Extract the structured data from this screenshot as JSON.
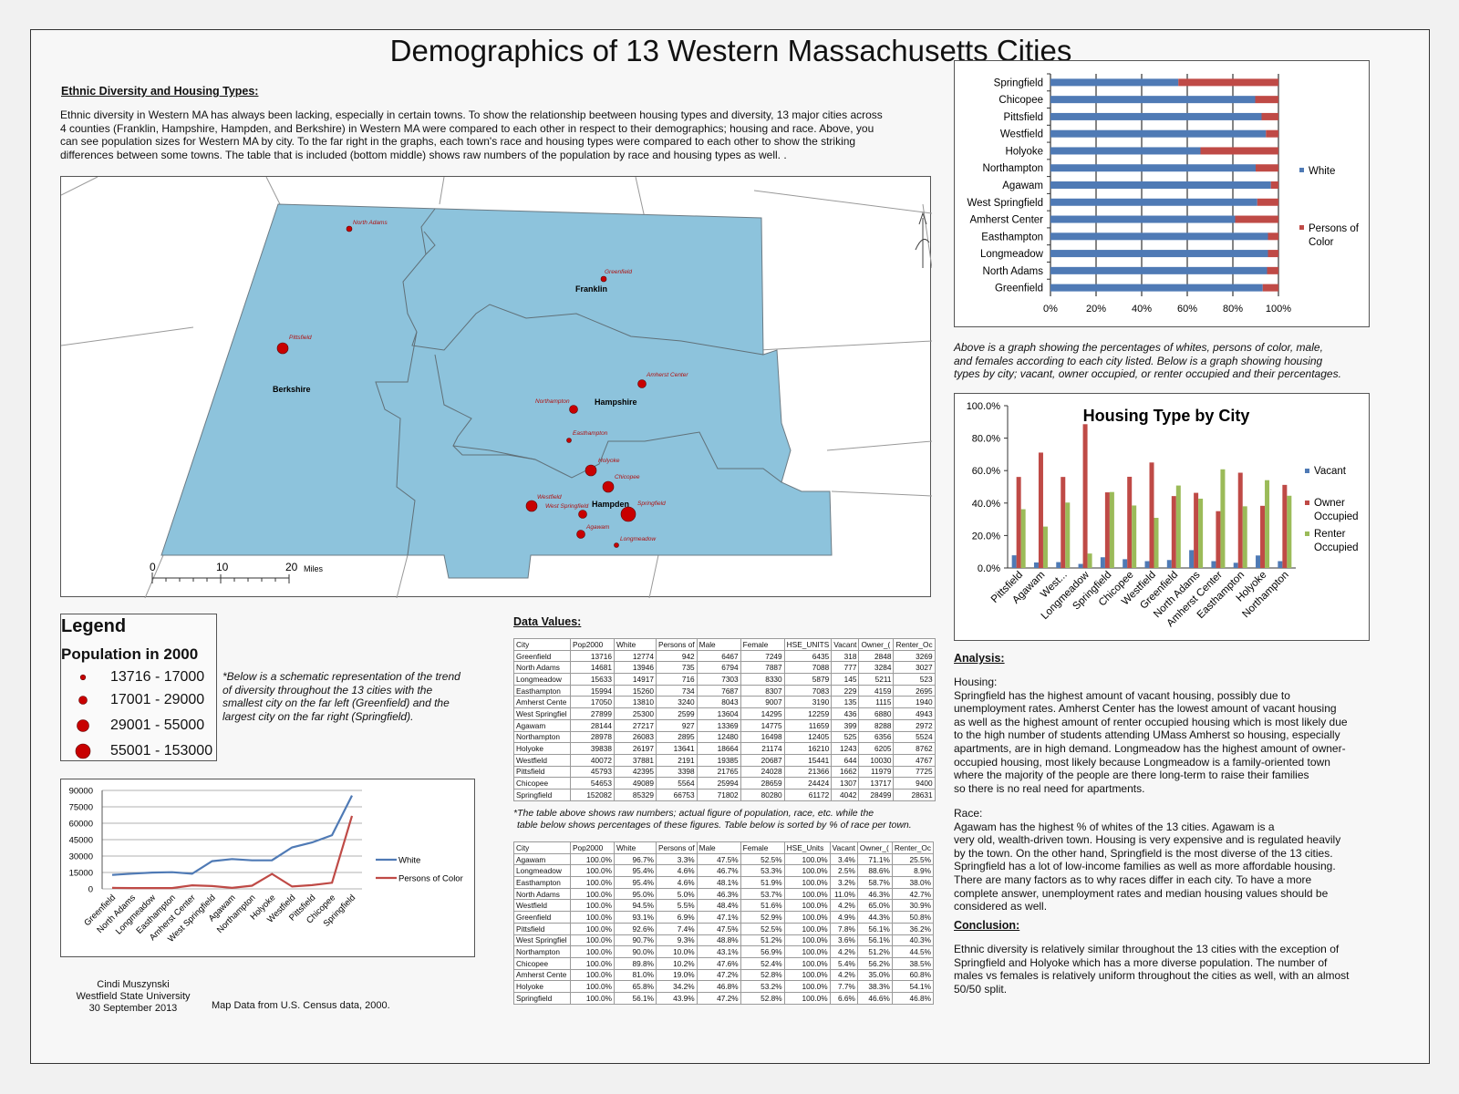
{
  "title": "Demographics of 13 Western Massachusetts Cities",
  "intro": {
    "heading": "Ethnic Diversity and Housing Types:",
    "lines": [
      "Ethnic diversity in Western MA has always been lacking, especially in certain towns. To show the relationship beetween housing types and diversity, 13 major cities across",
      "4 counties (Franklin, Hampshire, Hampden, and Berkshire) in Western MA were compared to each other in respect  to their demographics; housing and race. Above, you",
      "can see population sizes for Western MA by city. To the far right in the graphs, each town's race and housing types were compared to each other to show the striking",
      "differences between some towns. The table that is included  (bottom middle) shows raw numbers of the population by race and housing types as well. ."
    ]
  },
  "map": {
    "counties": [
      "Franklin",
      "Berkshire",
      "Hampshire",
      "Hampden"
    ],
    "cities": [
      "North Adams",
      "Greenfield",
      "Pittsfield",
      "Amherst Center",
      "Northampton",
      "Easthampton",
      "Holyoke",
      "Chicopee",
      "Westfield",
      "West Springfield",
      "Springfield",
      "Agawam",
      "Longmeadow"
    ],
    "scale": {
      "ticks": [
        "0",
        "10",
        "20"
      ],
      "unit": "Miles"
    },
    "colors": {
      "land": "#8dc3dc",
      "city": "#c80000",
      "label": "#b01010"
    }
  },
  "legend": {
    "title": "Legend",
    "subtitle": "Population in 2000",
    "classes": [
      "13716 - 17000",
      "17001 - 29000",
      "29001 - 55000",
      "55001 - 153000"
    ]
  },
  "schematic_note": [
    "*Below is a schematic representation of the trend",
    "of diversity throughout the 13 cities with the",
    "smallest city on the far left (Greenfield) and the",
    "largest city on the far right (Springfield)."
  ],
  "credits": {
    "author": "Cindi Muszynski",
    "school": "Westfield State University",
    "date": "30 September 2013",
    "source": "Map Data from U.S. Census data, 2000."
  },
  "data_values": {
    "heading": "Data Values:",
    "table1": {
      "headers": [
        "City",
        "Pop2000",
        "White",
        "Persons of",
        "Male",
        "Female",
        "HSE_UNITS",
        "Vacant",
        "Owner_(",
        "Renter_Oc"
      ],
      "rows": [
        [
          "Greenfield",
          "13716",
          "12774",
          "942",
          "6467",
          "7249",
          "6435",
          "318",
          "2848",
          "3269"
        ],
        [
          "North Adams",
          "14681",
          "13946",
          "735",
          "6794",
          "7887",
          "7088",
          "777",
          "3284",
          "3027"
        ],
        [
          "Longmeadow",
          "15633",
          "14917",
          "716",
          "7303",
          "8330",
          "5879",
          "145",
          "5211",
          "523"
        ],
        [
          "Easthampton",
          "15994",
          "15260",
          "734",
          "7687",
          "8307",
          "7083",
          "229",
          "4159",
          "2695"
        ],
        [
          "Amherst Cente",
          "17050",
          "13810",
          "3240",
          "8043",
          "9007",
          "3190",
          "135",
          "1115",
          "1940"
        ],
        [
          "West Springfiel",
          "27899",
          "25300",
          "2599",
          "13604",
          "14295",
          "12259",
          "436",
          "6880",
          "4943"
        ],
        [
          "Agawam",
          "28144",
          "27217",
          "927",
          "13369",
          "14775",
          "11659",
          "399",
          "8288",
          "2972"
        ],
        [
          "Northampton",
          "28978",
          "26083",
          "2895",
          "12480",
          "16498",
          "12405",
          "525",
          "6356",
          "5524"
        ],
        [
          "Holyoke",
          "39838",
          "26197",
          "13641",
          "18664",
          "21174",
          "16210",
          "1243",
          "6205",
          "8762"
        ],
        [
          "Westfield",
          "40072",
          "37881",
          "2191",
          "19385",
          "20687",
          "15441",
          "644",
          "10030",
          "4767"
        ],
        [
          "Pittsfield",
          "45793",
          "42395",
          "3398",
          "21765",
          "24028",
          "21366",
          "1662",
          "11979",
          "7725"
        ],
        [
          "Chicopee",
          "54653",
          "49089",
          "5564",
          "25994",
          "28659",
          "24424",
          "1307",
          "13717",
          "9400"
        ],
        [
          "Springfield",
          "152082",
          "85329",
          "66753",
          "71802",
          "80280",
          "61172",
          "4042",
          "28499",
          "28631"
        ]
      ]
    },
    "note": [
      "*The table above shows raw numbers; actual figure of population, race, etc. while the",
      "table below shows percentages of these figures. Table below is sorted by % of race per town."
    ],
    "table2": {
      "headers": [
        "City",
        "Pop2000",
        "White",
        "Persons of",
        "Male",
        "Female",
        "HSE_Units",
        "Vacant",
        "Owner_(",
        "Renter_Oc"
      ],
      "rows": [
        [
          "Agawam",
          "100.0%",
          "96.7%",
          "3.3%",
          "47.5%",
          "52.5%",
          "100.0%",
          "3.4%",
          "71.1%",
          "25.5%"
        ],
        [
          "Longmeadow",
          "100.0%",
          "95.4%",
          "4.6%",
          "46.7%",
          "53.3%",
          "100.0%",
          "2.5%",
          "88.6%",
          "8.9%"
        ],
        [
          "Easthampton",
          "100.0%",
          "95.4%",
          "4.6%",
          "48.1%",
          "51.9%",
          "100.0%",
          "3.2%",
          "58.7%",
          "38.0%"
        ],
        [
          "North Adams",
          "100.0%",
          "95.0%",
          "5.0%",
          "46.3%",
          "53.7%",
          "100.0%",
          "11.0%",
          "46.3%",
          "42.7%"
        ],
        [
          "Westfield",
          "100.0%",
          "94.5%",
          "5.5%",
          "48.4%",
          "51.6%",
          "100.0%",
          "4.2%",
          "65.0%",
          "30.9%"
        ],
        [
          "Greenfield",
          "100.0%",
          "93.1%",
          "6.9%",
          "47.1%",
          "52.9%",
          "100.0%",
          "4.9%",
          "44.3%",
          "50.8%"
        ],
        [
          "Pittsfield",
          "100.0%",
          "92.6%",
          "7.4%",
          "47.5%",
          "52.5%",
          "100.0%",
          "7.8%",
          "56.1%",
          "36.2%"
        ],
        [
          "West Springfiel",
          "100.0%",
          "90.7%",
          "9.3%",
          "48.8%",
          "51.2%",
          "100.0%",
          "3.6%",
          "56.1%",
          "40.3%"
        ],
        [
          "Northampton",
          "100.0%",
          "90.0%",
          "10.0%",
          "43.1%",
          "56.9%",
          "100.0%",
          "4.2%",
          "51.2%",
          "44.5%"
        ],
        [
          "Chicopee",
          "100.0%",
          "89.8%",
          "10.2%",
          "47.6%",
          "52.4%",
          "100.0%",
          "5.4%",
          "56.2%",
          "38.5%"
        ],
        [
          "Amherst Cente",
          "100.0%",
          "81.0%",
          "19.0%",
          "47.2%",
          "52.8%",
          "100.0%",
          "4.2%",
          "35.0%",
          "60.8%"
        ],
        [
          "Holyoke",
          "100.0%",
          "65.8%",
          "34.2%",
          "46.8%",
          "53.2%",
          "100.0%",
          "7.7%",
          "38.3%",
          "54.1%"
        ],
        [
          "Springfield",
          "100.0%",
          "56.1%",
          "43.9%",
          "47.2%",
          "52.8%",
          "100.0%",
          "6.6%",
          "46.6%",
          "46.8%"
        ]
      ]
    }
  },
  "graph_note": [
    "Above is a graph showing the percentages of whites, persons of color, male,",
    "and females according to each city listed. Below is a graph showing housing",
    "types by city; vacant, owner occupied, or renter occupied and their percentages."
  ],
  "analysis": {
    "heading": "Analysis:",
    "housing_label": "Housing:",
    "housing_lines": [
      "Springfield has the highest amount of vacant housing, possibly due to",
      "unemployment rates. Amherst Center has the lowest amount of vacant housing",
      "as well as the highest amount of renter occupied housing which is most likely due",
      "to the high number of students attending UMass Amherst so housing, especially",
      "apartments, are in high demand. Longmeadow has the highest amount of owner-",
      "occupied housing, most likely because Longmeadow is a family-oriented town",
      "where the majority of the people are there long-term to raise their families",
      "so there is no real need for apartments."
    ],
    "race_label": "Race:",
    "race_lines": [
      "Agawam has the highest % of whites of the 13 cities. Agawam is a",
      "very old, wealth-driven town. Housing is very expensive and is regulated heavily",
      "by the town. On the other hand, Springfield is the most diverse of the 13 cities.",
      "Springfield has a lot of low-income families as well as more affordable housing.",
      "There are many factors as to why races differ in each city. To have a more",
      "complete answer, unemployment rates and median housing values should be",
      "considered as well."
    ]
  },
  "conclusion": {
    "heading": "Conclusion:",
    "lines": [
      "Ethnic diversity is relatively similar throughout the 13 cities with the exception of",
      "Springfield and Holyoke which has a more diverse population. The number of",
      "males vs females is relatively uniform throughout the cities as well, with an almost",
      "50/50 split."
    ]
  },
  "chart_data": [
    {
      "type": "bar",
      "orientation": "horizontal",
      "stacked": "percent",
      "categories": [
        "Springfield",
        "Chicopee",
        "Pittsfield",
        "Westfield",
        "Holyoke",
        "Northampton",
        "Agawam",
        "West Springfield",
        "Amherst Center",
        "Easthampton",
        "Longmeadow",
        "North Adams",
        "Greenfield"
      ],
      "series": [
        {
          "name": "White",
          "color": "#4f7ab5",
          "values": [
            56.1,
            89.8,
            92.6,
            94.5,
            65.8,
            90.0,
            96.7,
            90.7,
            81.0,
            95.4,
            95.4,
            95.0,
            93.1
          ]
        },
        {
          "name": "Persons of Color",
          "color": "#bf4a46",
          "values": [
            43.9,
            10.2,
            7.4,
            5.5,
            34.2,
            10.0,
            3.3,
            9.3,
            19.0,
            4.6,
            4.6,
            5.0,
            6.9
          ]
        }
      ],
      "xticks": [
        "0%",
        "20%",
        "40%",
        "60%",
        "80%",
        "100%"
      ],
      "xlim": [
        0,
        100
      ],
      "legend": [
        "White",
        "Persons of Color"
      ],
      "legend_labels": {
        "white": "White",
        "poc_line1": "Persons of",
        "poc_line2": "Color"
      },
      "legend_position": "right",
      "grid": true
    },
    {
      "type": "bar",
      "title": "Housing Type by City",
      "categories": [
        "Pittsfield",
        "Agawam",
        "West...",
        "Longmeadow",
        "Springfield",
        "Chicopee",
        "Westfield",
        "Greenfield",
        "North Adams",
        "Amherst Center",
        "Easthampton",
        "Holyoke",
        "Northampton"
      ],
      "series": [
        {
          "name": "Vacant",
          "color": "#4f7ab5",
          "values": [
            7.8,
            3.4,
            3.6,
            2.5,
            6.6,
            5.4,
            4.2,
            4.9,
            11.0,
            4.2,
            3.2,
            7.7,
            4.2
          ]
        },
        {
          "name": "Owner Occupied",
          "color": "#bf4a46",
          "values": [
            56.1,
            71.1,
            56.1,
            88.6,
            46.6,
            56.2,
            65.0,
            44.3,
            46.3,
            35.0,
            58.7,
            38.3,
            51.2
          ]
        },
        {
          "name": "Renter Occupied",
          "color": "#9bbb59",
          "values": [
            36.2,
            25.5,
            40.3,
            8.9,
            46.8,
            38.5,
            30.9,
            50.8,
            42.7,
            60.8,
            38.0,
            54.1,
            44.5
          ]
        }
      ],
      "yticks": [
        "0.0%",
        "20.0%",
        "40.0%",
        "60.0%",
        "80.0%",
        "100.0%"
      ],
      "ylim": [
        0,
        100
      ],
      "legend_labels": {
        "vacant": "Vacant",
        "owner_line1": "Owner",
        "owner_line2": "Occupied",
        "renter_line1": "Renter",
        "renter_line2": "Occupied"
      },
      "legend_position": "right"
    },
    {
      "type": "line",
      "categories": [
        "Greenfield",
        "North Adams",
        "Longmeadow",
        "Easthampton",
        "Amherst Center",
        "West Springfield",
        "Agawam",
        "Northampton",
        "Holyoke",
        "Westfield",
        "Pittsfield",
        "Chicopee",
        "Springfield"
      ],
      "series": [
        {
          "name": "White",
          "color": "#4f7ab5",
          "values": [
            12774,
            13946,
            14917,
            15260,
            13810,
            25300,
            27217,
            26083,
            26197,
            37881,
            42395,
            49089,
            85329
          ]
        },
        {
          "name": "Persons of Color",
          "color": "#bf4a46",
          "values": [
            942,
            735,
            716,
            734,
            3240,
            2599,
            927,
            2895,
            13641,
            2191,
            3398,
            5564,
            66753
          ]
        }
      ],
      "yticks": [
        "0",
        "15000",
        "30000",
        "45000",
        "60000",
        "75000",
        "90000"
      ],
      "ylim": [
        0,
        90000
      ],
      "legend_position": "right"
    }
  ]
}
